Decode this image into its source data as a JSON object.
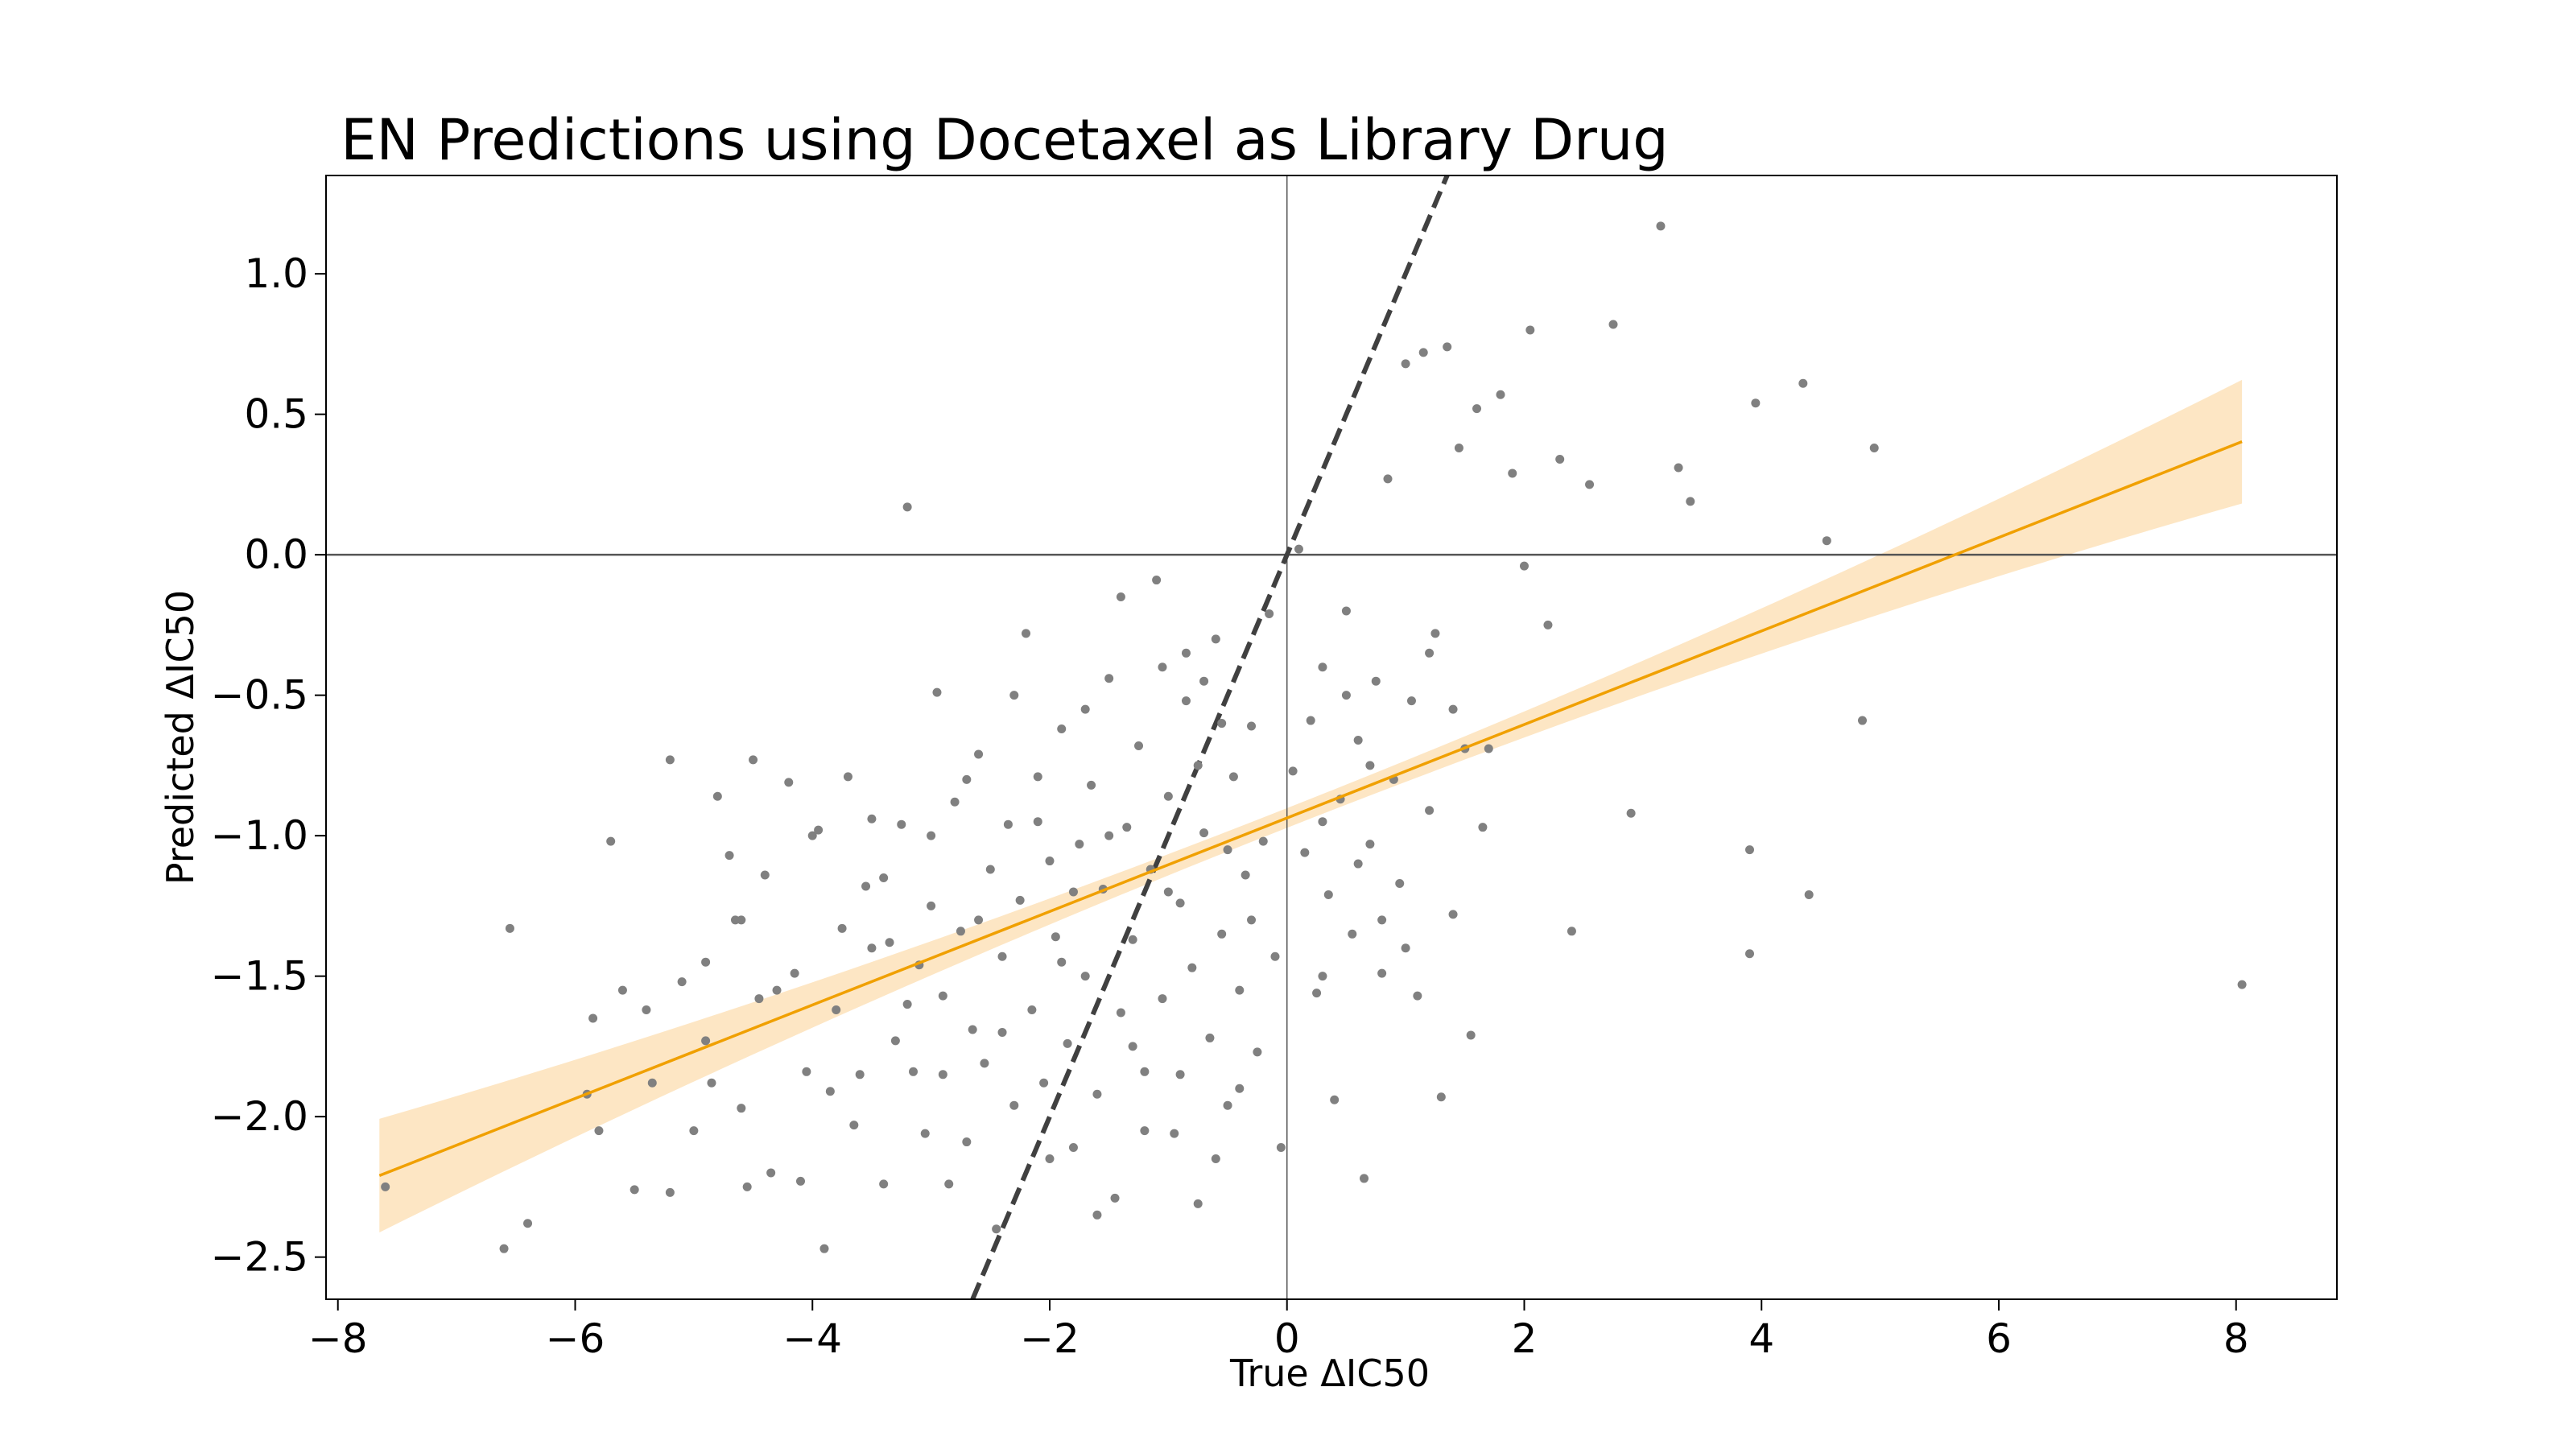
{
  "chart_data": {
    "type": "scatter",
    "title": "EN Predictions using Docetaxel as Library Drug",
    "xlabel": "True ΔIC50",
    "ylabel": "Predicted ΔIC50",
    "xlim": [
      -8.1,
      8.85
    ],
    "ylim": [
      -2.65,
      1.35
    ],
    "xticks": [
      {
        "value": -8,
        "label": "−8"
      },
      {
        "value": -6,
        "label": "−6"
      },
      {
        "value": -4,
        "label": "−4"
      },
      {
        "value": -2,
        "label": "−2"
      },
      {
        "value": 0,
        "label": "0"
      },
      {
        "value": 2,
        "label": "2"
      },
      {
        "value": 4,
        "label": "4"
      },
      {
        "value": 6,
        "label": "6"
      },
      {
        "value": 8,
        "label": "8"
      }
    ],
    "yticks": [
      {
        "value": -2.5,
        "label": "−2.5"
      },
      {
        "value": -2.0,
        "label": "−2.0"
      },
      {
        "value": -1.5,
        "label": "−1.5"
      },
      {
        "value": -1.0,
        "label": "−1.0"
      },
      {
        "value": -0.5,
        "label": "−0.5"
      },
      {
        "value": 0.0,
        "label": "0.0"
      },
      {
        "value": 0.5,
        "label": "0.5"
      },
      {
        "value": 1.0,
        "label": "1.0"
      }
    ],
    "grid": false,
    "reference_lines": {
      "horizontal_y": 0,
      "vertical_x": 0,
      "identity_dashed": true
    },
    "regression": {
      "x_range": [
        -7.65,
        8.05
      ],
      "intercept": -0.937,
      "slope": 0.1664,
      "ci_half_width_at_ends": 0.22,
      "ci_half_width_at_center": 0.035,
      "ci_center_x": 0.0
    },
    "colors": {
      "points": "#808080",
      "regression_line": "#f0a000",
      "confidence_band": "#fde6c4",
      "identity_line": "#404040",
      "zero_lines": "#555555"
    },
    "points": [
      [
        -7.6,
        -2.25
      ],
      [
        -6.6,
        -2.47
      ],
      [
        -6.4,
        -2.38
      ],
      [
        -6.55,
        -1.33
      ],
      [
        -5.85,
        -1.65
      ],
      [
        -5.8,
        -2.05
      ],
      [
        -5.9,
        -1.92
      ],
      [
        -5.7,
        -1.02
      ],
      [
        -5.5,
        -2.26
      ],
      [
        -5.4,
        -1.62
      ],
      [
        -5.35,
        -1.88
      ],
      [
        -5.2,
        -0.73
      ],
      [
        -5.2,
        -2.27
      ],
      [
        -5.1,
        -1.52
      ],
      [
        -5.0,
        -2.05
      ],
      [
        -4.9,
        -1.73
      ],
      [
        -4.85,
        -1.88
      ],
      [
        -4.8,
        -0.86
      ],
      [
        -4.7,
        -1.07
      ],
      [
        -4.65,
        -1.3
      ],
      [
        -4.6,
        -1.97
      ],
      [
        -4.55,
        -2.25
      ],
      [
        -4.5,
        -0.73
      ],
      [
        -4.45,
        -1.58
      ],
      [
        -4.4,
        -1.14
      ],
      [
        -4.35,
        -2.2
      ],
      [
        -4.2,
        -0.81
      ],
      [
        -4.15,
        -1.49
      ],
      [
        -4.1,
        -2.23
      ],
      [
        -4.05,
        -1.84
      ],
      [
        -3.95,
        -0.98
      ],
      [
        -3.9,
        -2.47
      ],
      [
        -3.85,
        -1.91
      ],
      [
        -3.8,
        -1.62
      ],
      [
        -3.75,
        -1.33
      ],
      [
        -3.7,
        -0.79
      ],
      [
        -3.65,
        -2.03
      ],
      [
        -3.55,
        -1.18
      ],
      [
        -3.5,
        -0.94
      ],
      [
        -3.4,
        -2.24
      ],
      [
        -3.35,
        -1.38
      ],
      [
        -3.3,
        -1.73
      ],
      [
        -3.25,
        -0.96
      ],
      [
        -3.2,
        0.17
      ],
      [
        -3.15,
        -1.84
      ],
      [
        -3.1,
        -1.46
      ],
      [
        -3.05,
        -2.06
      ],
      [
        -3.0,
        -1.25
      ],
      [
        -2.95,
        -0.49
      ],
      [
        -2.9,
        -1.57
      ],
      [
        -2.85,
        -2.24
      ],
      [
        -2.8,
        -0.88
      ],
      [
        -2.75,
        -1.34
      ],
      [
        -2.7,
        -2.09
      ],
      [
        -2.65,
        -1.69
      ],
      [
        -2.6,
        -0.71
      ],
      [
        -2.55,
        -1.81
      ],
      [
        -2.5,
        -1.12
      ],
      [
        -2.45,
        -2.4
      ],
      [
        -2.4,
        -1.43
      ],
      [
        -2.35,
        -0.96
      ],
      [
        -2.3,
        -1.96
      ],
      [
        -2.25,
        -1.23
      ],
      [
        -2.2,
        -0.28
      ],
      [
        -2.15,
        -1.62
      ],
      [
        -2.1,
        -0.79
      ],
      [
        -2.05,
        -1.88
      ],
      [
        -2.0,
        -1.09
      ],
      [
        -1.95,
        -1.36
      ],
      [
        -1.9,
        -0.62
      ],
      [
        -1.85,
        -1.74
      ],
      [
        -1.8,
        -2.11
      ],
      [
        -1.75,
        -1.03
      ],
      [
        -1.7,
        -1.5
      ],
      [
        -1.65,
        -0.82
      ],
      [
        -1.6,
        -1.92
      ],
      [
        -1.55,
        -1.19
      ],
      [
        -1.5,
        -0.44
      ],
      [
        -1.45,
        -2.29
      ],
      [
        -1.4,
        -1.63
      ],
      [
        -1.35,
        -0.97
      ],
      [
        -1.3,
        -1.37
      ],
      [
        -1.25,
        -0.68
      ],
      [
        -1.2,
        -1.84
      ],
      [
        -1.15,
        -1.12
      ],
      [
        -1.1,
        -0.09
      ],
      [
        -1.05,
        -1.58
      ],
      [
        -1.0,
        -0.86
      ],
      [
        -0.95,
        -2.06
      ],
      [
        -0.9,
        -1.24
      ],
      [
        -0.85,
        -0.52
      ],
      [
        -0.8,
        -1.47
      ],
      [
        -0.75,
        -2.31
      ],
      [
        -0.7,
        -0.99
      ],
      [
        -0.65,
        -1.72
      ],
      [
        -0.6,
        -0.3
      ],
      [
        -0.55,
        -1.35
      ],
      [
        -0.5,
        -1.96
      ],
      [
        -0.45,
        -0.79
      ],
      [
        -0.4,
        -1.55
      ],
      [
        -0.35,
        -1.14
      ],
      [
        -0.3,
        -0.61
      ],
      [
        -0.25,
        -1.77
      ],
      [
        -0.2,
        -1.02
      ],
      [
        -0.15,
        -0.21
      ],
      [
        -0.1,
        -1.43
      ],
      [
        -0.05,
        -2.11
      ],
      [
        0.05,
        -0.77
      ],
      [
        0.1,
        0.02
      ],
      [
        0.15,
        -1.06
      ],
      [
        0.2,
        -0.59
      ],
      [
        0.25,
        -1.56
      ],
      [
        0.3,
        -0.4
      ],
      [
        0.35,
        -1.21
      ],
      [
        0.4,
        -1.94
      ],
      [
        0.45,
        -0.87
      ],
      [
        0.5,
        -0.2
      ],
      [
        0.55,
        -1.35
      ],
      [
        0.6,
        -0.66
      ],
      [
        0.65,
        -2.22
      ],
      [
        0.7,
        -1.03
      ],
      [
        0.75,
        -0.45
      ],
      [
        0.8,
        -1.49
      ],
      [
        0.85,
        0.27
      ],
      [
        0.9,
        -0.8
      ],
      [
        0.95,
        -1.17
      ],
      [
        1.0,
        0.68
      ],
      [
        1.05,
        -0.52
      ],
      [
        1.1,
        -1.57
      ],
      [
        1.15,
        0.72
      ],
      [
        1.2,
        -0.91
      ],
      [
        1.25,
        -0.28
      ],
      [
        1.3,
        -1.93
      ],
      [
        1.35,
        0.74
      ],
      [
        1.4,
        -1.28
      ],
      [
        1.45,
        0.38
      ],
      [
        1.5,
        -0.69
      ],
      [
        1.55,
        -1.71
      ],
      [
        1.6,
        0.52
      ],
      [
        1.65,
        -0.97
      ],
      [
        1.7,
        -0.69
      ],
      [
        1.8,
        0.57
      ],
      [
        1.9,
        0.29
      ],
      [
        2.0,
        -0.04
      ],
      [
        2.05,
        0.8
      ],
      [
        2.2,
        -0.25
      ],
      [
        2.3,
        0.34
      ],
      [
        2.4,
        -1.34
      ],
      [
        2.55,
        0.25
      ],
      [
        2.75,
        0.82
      ],
      [
        2.9,
        -0.92
      ],
      [
        3.15,
        1.17
      ],
      [
        3.3,
        0.31
      ],
      [
        3.4,
        0.19
      ],
      [
        3.9,
        -1.05
      ],
      [
        3.9,
        -1.42
      ],
      [
        3.95,
        0.54
      ],
      [
        4.35,
        0.61
      ],
      [
        4.4,
        -1.21
      ],
      [
        4.55,
        0.05
      ],
      [
        4.85,
        -0.59
      ],
      [
        4.95,
        0.38
      ],
      [
        8.05,
        -1.53
      ],
      [
        -0.85,
        -0.35
      ],
      [
        -0.7,
        -0.45
      ],
      [
        -0.55,
        -0.6
      ],
      [
        -1.4,
        -0.15
      ],
      [
        -1.7,
        -0.55
      ],
      [
        -2.3,
        -0.5
      ],
      [
        -3.5,
        -1.4
      ],
      [
        -3.0,
        -1.0
      ],
      [
        -2.6,
        -1.3
      ],
      [
        -1.9,
        -1.45
      ],
      [
        -1.3,
        -1.75
      ],
      [
        -0.9,
        -1.85
      ],
      [
        -0.4,
        -1.9
      ],
      [
        -1.2,
        -2.05
      ],
      [
        -2.0,
        -2.15
      ],
      [
        -0.6,
        -2.15
      ],
      [
        -1.6,
        -2.35
      ],
      [
        -4.3,
        -1.55
      ],
      [
        -4.9,
        -1.45
      ],
      [
        -5.6,
        -1.55
      ],
      [
        -3.6,
        -1.85
      ],
      [
        -3.2,
        -1.6
      ],
      [
        -2.9,
        -1.85
      ],
      [
        -2.4,
        -1.7
      ],
      [
        -1.8,
        -1.2
      ],
      [
        -1.0,
        -1.2
      ],
      [
        -0.3,
        -1.3
      ],
      [
        0.3,
        -0.95
      ],
      [
        0.6,
        -1.1
      ],
      [
        0.8,
        -1.3
      ],
      [
        0.3,
        -1.5
      ],
      [
        1.0,
        -1.4
      ],
      [
        0.5,
        -0.5
      ],
      [
        0.7,
        -0.75
      ],
      [
        1.2,
        -0.35
      ],
      [
        1.4,
        -0.55
      ],
      [
        -0.75,
        -0.75
      ],
      [
        -1.05,
        -0.4
      ],
      [
        -0.5,
        -1.05
      ],
      [
        -1.5,
        -1.0
      ],
      [
        -2.1,
        -0.95
      ],
      [
        -2.7,
        -0.8
      ],
      [
        -3.4,
        -1.15
      ],
      [
        -4.0,
        -1.0
      ],
      [
        -4.6,
        -1.3
      ]
    ]
  }
}
